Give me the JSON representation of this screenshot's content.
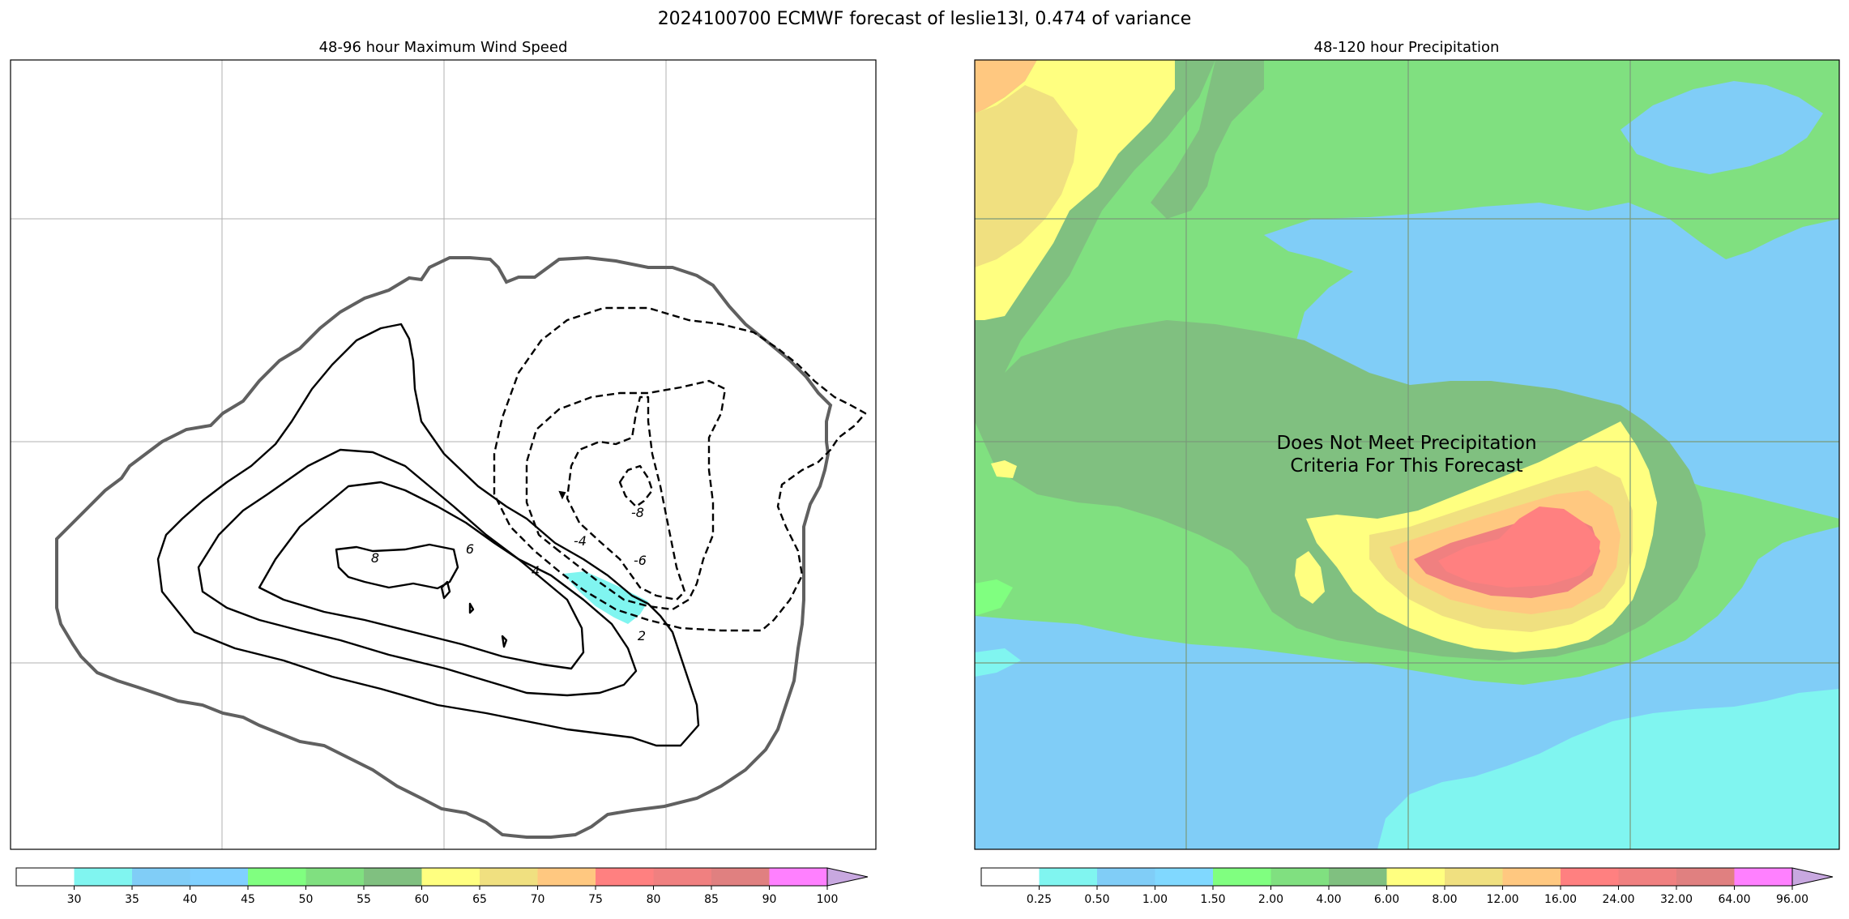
{
  "figure": {
    "title": "2024100700 ECMWF forecast of leslie13l, 0.474 of variance"
  },
  "chart_data": [
    {
      "type": "contour",
      "title": "48-96 hour Maximum Wind Speed",
      "filled_levels": [
        "30",
        "35",
        "40",
        "45",
        "50",
        "55",
        "60",
        "65",
        "70",
        "75",
        "80",
        "85",
        "90",
        "100"
      ],
      "colorbar_colors": [
        "#ffffff",
        "#80f5f0",
        "#80cdf7",
        "#80d0ff",
        "#80ff80",
        "#80e080",
        "#80c080",
        "#ffff80",
        "#f0e080",
        "#ffc880",
        "#ff8080",
        "#f08080",
        "#e08080",
        "#ff80ff",
        "#c8a8e0"
      ],
      "colorbar_extend": "max",
      "contour_labels": [
        "8",
        "6",
        "4",
        "2",
        "-4",
        "-6",
        "-8"
      ],
      "grid": true
    },
    {
      "type": "filled-contour",
      "title": "48-120 hour Precipitation",
      "filled_levels": [
        "0.25",
        "0.50",
        "1.00",
        "1.50",
        "2.00",
        "4.00",
        "6.00",
        "8.00",
        "12.00",
        "16.00",
        "24.00",
        "32.00",
        "64.00",
        "96.00"
      ],
      "colorbar_colors": [
        "#ffffff",
        "#80f5f0",
        "#80cdf7",
        "#80d8ff",
        "#80ff80",
        "#80e080",
        "#80c080",
        "#ffff80",
        "#f0e080",
        "#ffc880",
        "#ff8080",
        "#f08080",
        "#e08080",
        "#ff80ff",
        "#c8a8e0"
      ],
      "colorbar_extend": "max",
      "annotation_line1": "Does Not Meet Precipitation",
      "annotation_line2": "Criteria For This Forecast",
      "grid": true
    }
  ]
}
